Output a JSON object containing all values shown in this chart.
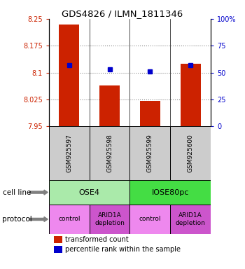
{
  "title": "GDS4826 / ILMN_1811346",
  "samples": [
    "GSM925597",
    "GSM925598",
    "GSM925599",
    "GSM925600"
  ],
  "bar_values": [
    8.235,
    8.065,
    8.022,
    8.125
  ],
  "bar_bottom": 7.95,
  "percentile_values": [
    57,
    53,
    51,
    57
  ],
  "ylim_left": [
    7.95,
    8.25
  ],
  "ylim_right": [
    0,
    100
  ],
  "yticks_left": [
    7.95,
    8.025,
    8.1,
    8.175,
    8.25
  ],
  "yticks_right": [
    0,
    25,
    50,
    75,
    100
  ],
  "ytick_labels_left": [
    "7.95",
    "8.025",
    "8.1",
    "8.175",
    "8.25"
  ],
  "ytick_labels_right": [
    "0",
    "25",
    "50",
    "75",
    "100%"
  ],
  "bar_color": "#cc2200",
  "percentile_color": "#0000cc",
  "cell_line_groups": [
    {
      "label": "OSE4",
      "span": [
        0,
        2
      ],
      "color": "#aaeaaa"
    },
    {
      "label": "IOSE80pc",
      "span": [
        2,
        4
      ],
      "color": "#44dd44"
    }
  ],
  "protocol_groups": [
    {
      "label": "control",
      "span": [
        0,
        1
      ],
      "color": "#ee88ee"
    },
    {
      "label": "ARID1A\ndepletion",
      "span": [
        1,
        2
      ],
      "color": "#cc55cc"
    },
    {
      "label": "control",
      "span": [
        2,
        3
      ],
      "color": "#ee88ee"
    },
    {
      "label": "ARID1A\ndepletion",
      "span": [
        3,
        4
      ],
      "color": "#cc55cc"
    }
  ],
  "cell_line_label": "cell line",
  "protocol_label": "protocol",
  "legend_bar_label": "transformed count",
  "legend_pct_label": "percentile rank within the sample",
  "grid_color": "#888888",
  "sample_box_color": "#cccccc",
  "left_axis_color": "#cc2200",
  "right_axis_color": "#0000cc",
  "bar_width": 0.5
}
